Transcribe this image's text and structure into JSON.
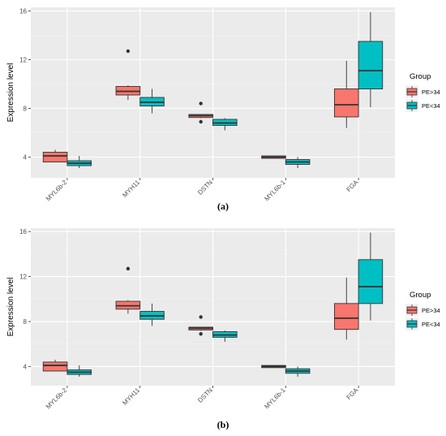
{
  "chart_data": [
    {
      "type": "box",
      "caption": "(a)",
      "ylabel": "Expression level",
      "ylim": [
        2.3,
        16.3
      ],
      "yticks": [
        4,
        8,
        12,
        16
      ],
      "categories": [
        "MYL6b-2",
        "MYH11",
        "DSTN",
        "MYL6b-1",
        "FGA"
      ],
      "legend": {
        "title": "Group",
        "position": "right"
      },
      "series": [
        {
          "name": "PE>34",
          "color": "#F8766D",
          "boxes": [
            {
              "min": 3.6,
              "q1": 3.6,
              "median": 4.1,
              "q3": 4.4,
              "max": 4.6,
              "outliers": []
            },
            {
              "min": 8.7,
              "q1": 9.1,
              "median": 9.4,
              "q3": 9.8,
              "max": 9.9,
              "outliers": [
                12.7
              ]
            },
            {
              "min": 7.2,
              "q1": 7.25,
              "median": 7.4,
              "q3": 7.5,
              "max": 7.5,
              "outliers": [
                6.9,
                8.4
              ]
            },
            {
              "min": 3.9,
              "q1": 3.9,
              "median": 4.0,
              "q3": 4.1,
              "max": 4.1,
              "outliers": []
            },
            {
              "min": 6.4,
              "q1": 7.3,
              "median": 8.3,
              "q3": 9.6,
              "max": 11.9,
              "outliers": []
            }
          ]
        },
        {
          "name": "PE<34",
          "color": "#00BFC4",
          "boxes": [
            {
              "min": 3.1,
              "q1": 3.3,
              "median": 3.5,
              "q3": 3.7,
              "max": 4.1,
              "outliers": []
            },
            {
              "min": 7.6,
              "q1": 8.2,
              "median": 8.5,
              "q3": 8.9,
              "max": 9.6,
              "outliers": []
            },
            {
              "min": 6.2,
              "q1": 6.6,
              "median": 6.8,
              "q3": 7.1,
              "max": 7.2,
              "outliers": []
            },
            {
              "min": 3.1,
              "q1": 3.4,
              "median": 3.6,
              "q3": 3.8,
              "max": 4.0,
              "outliers": []
            },
            {
              "min": 8.1,
              "q1": 9.6,
              "median": 11.1,
              "q3": 13.5,
              "max": 15.9,
              "outliers": []
            }
          ]
        }
      ]
    },
    {
      "type": "box",
      "caption": "(b)",
      "ylabel": "Expression level",
      "ylim": [
        2.3,
        16.3
      ],
      "yticks": [
        4,
        8,
        12,
        16
      ],
      "categories": [
        "MYL6b-2",
        "MYH11",
        "DSTN",
        "MYL6b-1",
        "FGA"
      ],
      "legend": {
        "title": "Group",
        "position": "right"
      },
      "series": [
        {
          "name": "PE>34",
          "color": "#F8766D",
          "boxes": [
            {
              "min": 3.6,
              "q1": 3.6,
              "median": 4.1,
              "q3": 4.4,
              "max": 4.6,
              "outliers": []
            },
            {
              "min": 8.7,
              "q1": 9.1,
              "median": 9.4,
              "q3": 9.8,
              "max": 9.9,
              "outliers": [
                12.7
              ]
            },
            {
              "min": 7.2,
              "q1": 7.25,
              "median": 7.4,
              "q3": 7.5,
              "max": 7.5,
              "outliers": [
                6.9,
                8.4
              ]
            },
            {
              "min": 3.9,
              "q1": 3.9,
              "median": 4.0,
              "q3": 4.1,
              "max": 4.1,
              "outliers": []
            },
            {
              "min": 6.4,
              "q1": 7.3,
              "median": 8.3,
              "q3": 9.6,
              "max": 11.9,
              "outliers": []
            }
          ]
        },
        {
          "name": "PE<34",
          "color": "#00BFC4",
          "boxes": [
            {
              "min": 3.1,
              "q1": 3.3,
              "median": 3.5,
              "q3": 3.7,
              "max": 4.1,
              "outliers": []
            },
            {
              "min": 7.6,
              "q1": 8.2,
              "median": 8.5,
              "q3": 8.9,
              "max": 9.6,
              "outliers": []
            },
            {
              "min": 6.2,
              "q1": 6.6,
              "median": 6.8,
              "q3": 7.1,
              "max": 7.2,
              "outliers": []
            },
            {
              "min": 3.1,
              "q1": 3.4,
              "median": 3.6,
              "q3": 3.8,
              "max": 4.0,
              "outliers": []
            },
            {
              "min": 8.1,
              "q1": 9.6,
              "median": 11.1,
              "q3": 13.5,
              "max": 15.9,
              "outliers": []
            }
          ]
        }
      ]
    }
  ]
}
